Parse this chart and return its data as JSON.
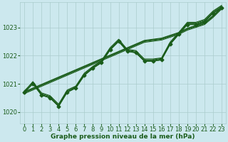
{
  "title": "Graphe pression niveau de la mer (hPa)",
  "bg_color": "#cce8ee",
  "grid_color": "#aacccc",
  "line_color": "#1a5c1a",
  "text_color": "#1a5c1a",
  "xlim": [
    -0.5,
    23.5
  ],
  "ylim": [
    1019.6,
    1023.9
  ],
  "yticks": [
    1020,
    1021,
    1022,
    1023
  ],
  "xticks": [
    0,
    1,
    2,
    3,
    4,
    5,
    6,
    7,
    8,
    9,
    10,
    11,
    12,
    13,
    14,
    15,
    16,
    17,
    18,
    19,
    20,
    21,
    22,
    23
  ],
  "series": [
    [
      1020.7,
      1021.0,
      1020.6,
      1020.5,
      1020.2,
      1020.7,
      1020.85,
      1021.3,
      1021.55,
      1021.75,
      1022.2,
      1022.5,
      1022.15,
      1022.1,
      1021.8,
      1021.8,
      1021.85,
      1022.4,
      1022.75,
      1023.1,
      1023.1,
      1023.2,
      1023.5,
      1023.7
    ],
    [
      1020.75,
      1021.05,
      1020.65,
      1020.55,
      1020.25,
      1020.75,
      1020.9,
      1021.35,
      1021.6,
      1021.8,
      1022.25,
      1022.55,
      1022.2,
      1022.15,
      1021.85,
      1021.85,
      1021.9,
      1022.45,
      1022.8,
      1023.15,
      1023.15,
      1023.25,
      1023.55,
      1023.75
    ],
    [
      1020.72,
      1021.08,
      1020.68,
      1020.58,
      1020.28,
      1020.78,
      1020.92,
      1021.38,
      1021.62,
      1021.82,
      1022.28,
      1022.58,
      1022.22,
      1022.18,
      1021.88,
      1021.88,
      1021.92,
      1022.48,
      1022.82,
      1023.18,
      1023.18,
      1023.28,
      1023.58,
      1023.78
    ],
    [
      1020.68,
      1021.02,
      1020.62,
      1020.52,
      1020.22,
      1020.72,
      1020.88,
      1021.32,
      1021.58,
      1021.78,
      1022.22,
      1022.52,
      1022.18,
      1022.12,
      1021.82,
      1021.82,
      1021.88,
      1022.42,
      1022.78,
      1023.12,
      1023.12,
      1023.22,
      1023.52,
      1023.72
    ],
    [
      1020.7,
      1021.0,
      1020.6,
      1020.5,
      1020.2,
      1020.7,
      1020.85,
      1021.3,
      1021.55,
      1021.75,
      1022.2,
      1022.5,
      1022.15,
      1022.1,
      1021.8,
      1021.8,
      1021.85,
      1022.4,
      1022.75,
      1023.1,
      1023.1,
      1023.2,
      1023.5,
      1023.7
    ]
  ],
  "smooth_lines": [
    [
      1020.7,
      1020.83,
      1020.96,
      1021.09,
      1021.22,
      1021.35,
      1021.48,
      1021.61,
      1021.74,
      1021.87,
      1022.0,
      1022.13,
      1022.26,
      1022.39,
      1022.52,
      1022.56,
      1022.6,
      1022.7,
      1022.8,
      1022.95,
      1023.05,
      1023.15,
      1023.4,
      1023.7
    ],
    [
      1020.72,
      1020.85,
      1020.98,
      1021.11,
      1021.24,
      1021.37,
      1021.5,
      1021.63,
      1021.76,
      1021.89,
      1022.02,
      1022.15,
      1022.28,
      1022.41,
      1022.54,
      1022.58,
      1022.62,
      1022.72,
      1022.82,
      1022.97,
      1023.07,
      1023.17,
      1023.42,
      1023.72
    ],
    [
      1020.68,
      1020.81,
      1020.94,
      1021.07,
      1021.2,
      1021.33,
      1021.46,
      1021.59,
      1021.72,
      1021.85,
      1021.98,
      1022.11,
      1022.24,
      1022.37,
      1022.5,
      1022.54,
      1022.58,
      1022.68,
      1022.78,
      1022.93,
      1023.03,
      1023.13,
      1023.38,
      1023.68
    ],
    [
      1020.65,
      1020.78,
      1020.91,
      1021.04,
      1021.17,
      1021.3,
      1021.43,
      1021.56,
      1021.69,
      1021.82,
      1021.95,
      1022.08,
      1022.21,
      1022.34,
      1022.47,
      1022.51,
      1022.55,
      1022.65,
      1022.75,
      1022.9,
      1023.0,
      1023.1,
      1023.35,
      1023.65
    ]
  ],
  "marker_size": 2.5,
  "linewidth": 0.8,
  "smooth_linewidth": 0.8,
  "xlabel_fontsize": 6,
  "ylabel_fontsize": 6,
  "title_fontsize": 6.5
}
